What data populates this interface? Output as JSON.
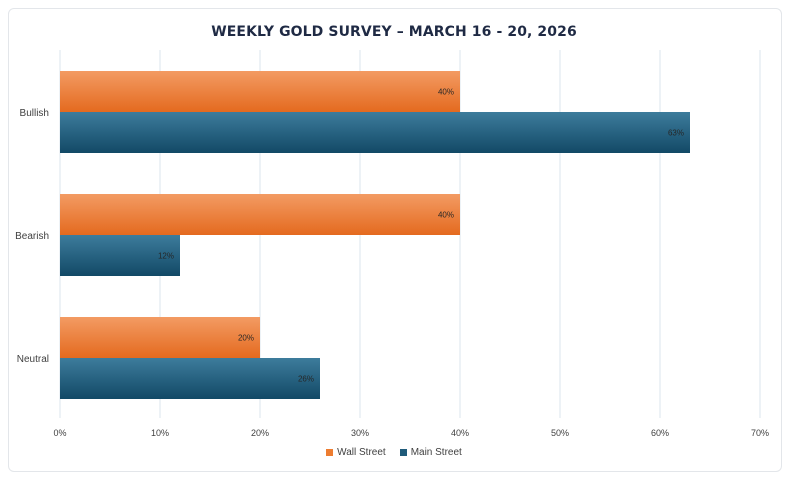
{
  "chart_data": {
    "type": "bar",
    "orientation": "horizontal",
    "title": "WEEKLY GOLD SURVEY – MARCH 16 - 20, 2026",
    "categories": [
      "Bullish",
      "Bearish",
      "Neutral"
    ],
    "series": [
      {
        "name": "Wall Street",
        "color": "#ed7d31",
        "values": [
          40,
          40,
          20
        ],
        "labels": [
          "40%",
          "40%",
          "20%"
        ]
      },
      {
        "name": "Main Street",
        "color": "#1f5b7a",
        "values": [
          63,
          12,
          26
        ],
        "labels": [
          "63%",
          "12%",
          "26%"
        ]
      }
    ],
    "xlim": [
      0,
      70
    ],
    "xticks": [
      "0%",
      "10%",
      "20%",
      "30%",
      "40%",
      "50%",
      "60%",
      "70%"
    ],
    "xlabel": "",
    "ylabel": "",
    "grid": "vertical",
    "legend": "bottom-center"
  }
}
